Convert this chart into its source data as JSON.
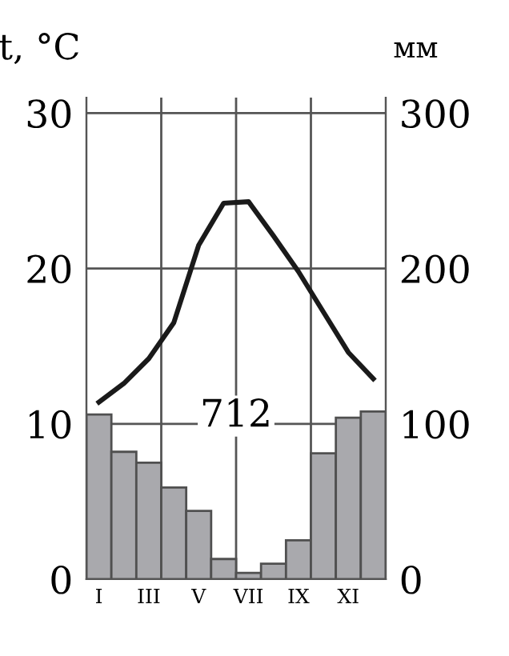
{
  "chart_data": {
    "type": "bar",
    "ylabel": "t, °C",
    "y2label": "мм",
    "categories": [
      "I",
      null,
      "III",
      null,
      "V",
      null,
      "VII",
      null,
      "IX",
      null,
      "XI",
      null
    ],
    "series": [
      {
        "axis": "y2",
        "color": "#a9a9ad",
        "values": [
          106,
          82,
          75,
          59,
          44,
          13,
          4,
          10,
          25,
          81,
          104,
          108
        ]
      },
      {
        "type": "line",
        "axis": "y",
        "color": "#1a1a1a",
        "values": [
          11.4,
          12.6,
          14.2,
          16.5,
          21.5,
          24.2,
          24.3,
          22.1,
          19.8,
          17.2,
          14.6,
          12.9
        ]
      }
    ],
    "ylim": [
      0,
      31
    ],
    "yticks": [
      0,
      10,
      20,
      30
    ],
    "y2lim": [
      0,
      310
    ],
    "y2ticks": [
      0,
      100,
      200,
      300
    ],
    "annotations": [
      "712"
    ],
    "grid": true,
    "legend": false,
    "marker": "none",
    "line_style": "solid"
  }
}
